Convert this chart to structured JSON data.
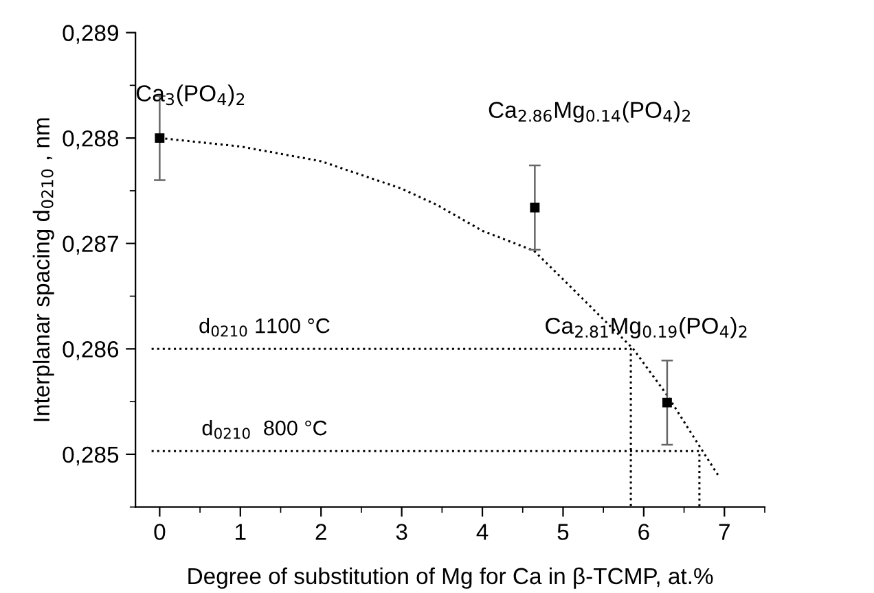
{
  "chart_data": {
    "type": "scatter",
    "xlabel": "Degree of substitution of Mg for Ca in β-TCMP, at.%",
    "ylabel": "Interplanar spacing d$_{0210}$ , nm",
    "xlim": [
      -0.3,
      7.5
    ],
    "xticks": [
      0,
      1,
      2,
      3,
      4,
      5,
      6,
      7
    ],
    "ylim": [
      0.2845,
      0.289
    ],
    "yticks": [
      {
        "value": 0.285,
        "label": "0,285"
      },
      {
        "value": 0.286,
        "label": "0,286"
      },
      {
        "value": 0.287,
        "label": "0,287"
      },
      {
        "value": 0.288,
        "label": "0,288"
      },
      {
        "value": 0.289,
        "label": "0,289"
      }
    ],
    "grid": false,
    "legend": false,
    "series": [
      {
        "color": "#000000",
        "marker": "square",
        "x": [
          0,
          4.65,
          6.29
        ],
        "values": [
          0.288,
          0.28734,
          0.28549
        ],
        "errors": [
          0.0004,
          0.0004,
          0.0004
        ]
      },
      {
        "type": "line",
        "color": "#000000",
        "marker": "none",
        "line_style": "dotted",
        "x": [
          0,
          1,
          2,
          3,
          3.45,
          4,
          4.64,
          5,
          5.5,
          5.87,
          6.3,
          6.73,
          6.94
        ],
        "values": [
          0.288,
          0.28792,
          0.28778,
          0.28752,
          0.28736,
          0.28712,
          0.28693,
          0.28666,
          0.28628,
          0.286,
          0.28555,
          0.28503,
          0.28478
        ]
      },
      {
        "type": "line",
        "color": "#000000",
        "marker": "none",
        "line_style": "dotted",
        "x": [
          -0.1,
          5.84,
          5.84
        ],
        "values": [
          0.286,
          0.286,
          0.2845
        ]
      },
      {
        "type": "line",
        "color": "#000000",
        "marker": "none",
        "line_style": "dotted",
        "x": [
          -0.1,
          6.69,
          6.69
        ],
        "values": [
          0.28503,
          0.28503,
          0.2845
        ]
      }
    ],
    "annotations": [
      "Ca$_{3}$(PO$_{4}$)$_{2}$",
      "Ca$_{2.86}$Mg$_{0.14}$(PO$_{4}$)$_{2}$",
      "Ca$_{2.81}$Mg$_{0.19}$(PO$_{4}$)$_{2}$",
      {
        "text": "d$_{0210}$ 1100 °C",
        "x": 1.3,
        "y": 0.286
      },
      {
        "text": "d$_{0210}$  800 °C",
        "x": 1.3,
        "y": 0.28503
      }
    ]
  }
}
